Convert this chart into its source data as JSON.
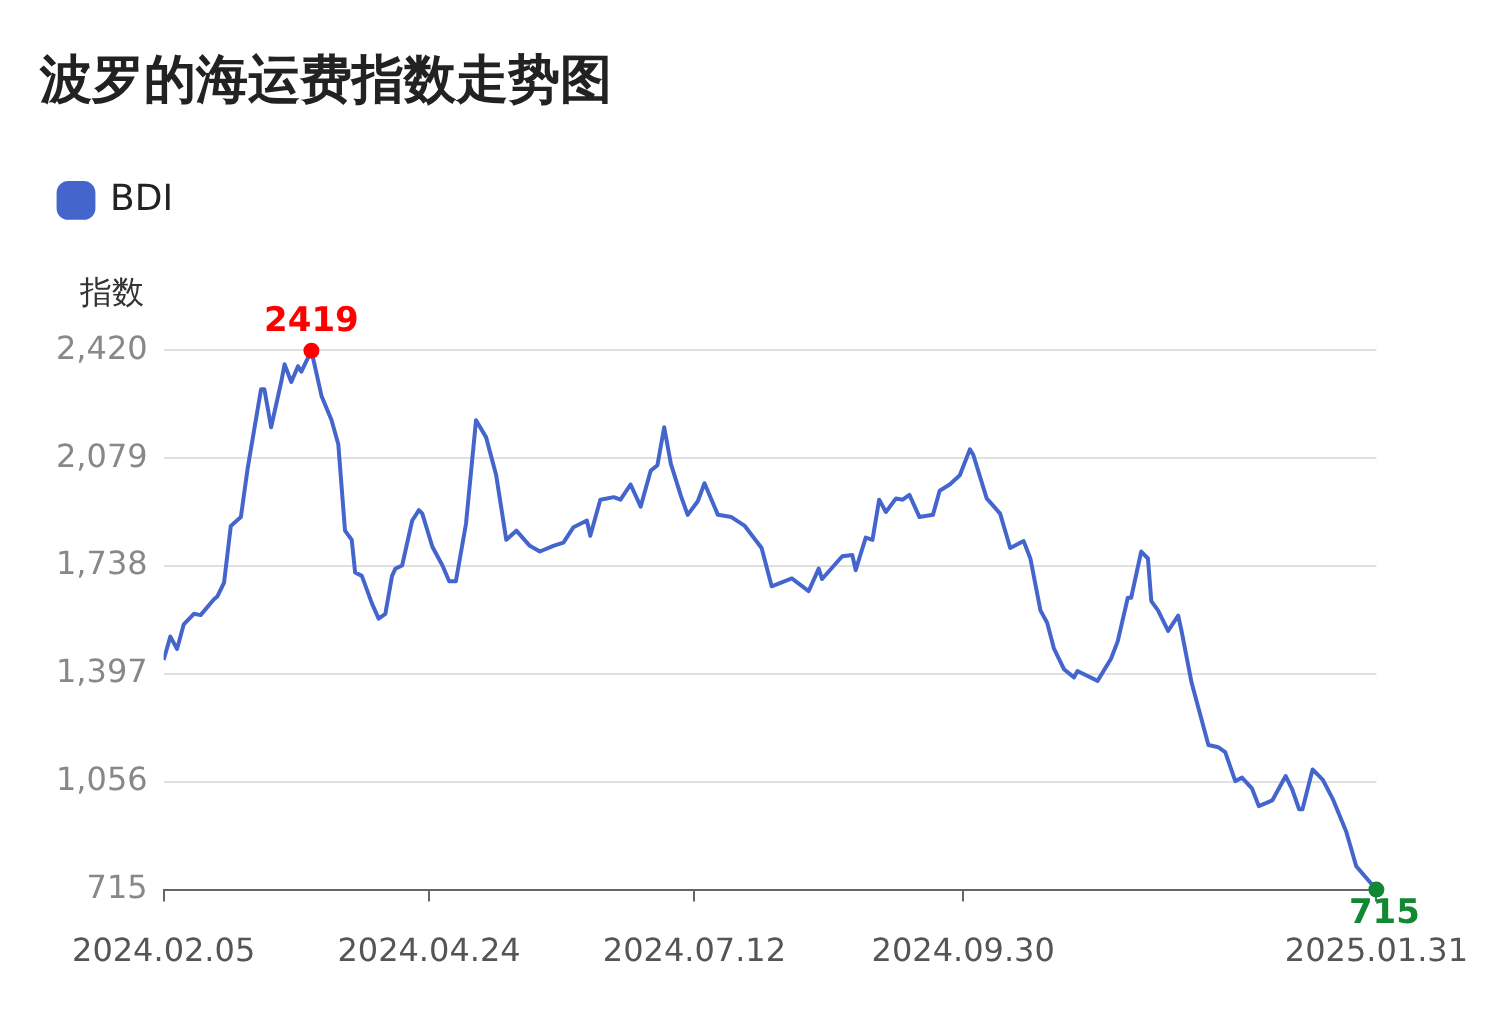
{
  "chart_data": {
    "type": "line",
    "title": "波罗的海运费指数走势图",
    "ylabel": "指数",
    "x": [
      "2024-02-05",
      "2024-02-07",
      "2024-02-09",
      "2024-02-11",
      "2024-02-14",
      "2024-02-16",
      "2024-02-20",
      "2024-02-21",
      "2024-02-23",
      "2024-02-25",
      "2024-02-28",
      "2024-03-01",
      "2024-03-05",
      "2024-03-06",
      "2024-03-08",
      "2024-03-11",
      "2024-03-12",
      "2024-03-14",
      "2024-03-16",
      "2024-03-17",
      "2024-03-20",
      "2024-03-23",
      "2024-03-26",
      "2024-03-28",
      "2024-03-30",
      "2024-04-01",
      "2024-04-02",
      "2024-04-04",
      "2024-04-07",
      "2024-04-09",
      "2024-04-11",
      "2024-04-13",
      "2024-04-14",
      "2024-04-16",
      "2024-04-19",
      "2024-04-21",
      "2024-04-22",
      "2024-04-25",
      "2024-04-28",
      "2024-04-30",
      "2024-05-02",
      "2024-05-05",
      "2024-05-08",
      "2024-05-11",
      "2024-05-14",
      "2024-05-17",
      "2024-05-20",
      "2024-05-24",
      "2024-05-27",
      "2024-05-31",
      "2024-06-03",
      "2024-06-06",
      "2024-06-10",
      "2024-06-11",
      "2024-06-14",
      "2024-06-18",
      "2024-06-20",
      "2024-06-23",
      "2024-06-26",
      "2024-06-29",
      "2024-07-01",
      "2024-07-03",
      "2024-07-05",
      "2024-07-08",
      "2024-07-10",
      "2024-07-13",
      "2024-07-15",
      "2024-07-19",
      "2024-07-23",
      "2024-07-27",
      "2024-08-01",
      "2024-08-04",
      "2024-08-10",
      "2024-08-15",
      "2024-08-18",
      "2024-08-19",
      "2024-08-25",
      "2024-08-28",
      "2024-08-29",
      "2024-09-01",
      "2024-09-03",
      "2024-09-05",
      "2024-09-07",
      "2024-09-10",
      "2024-09-12",
      "2024-09-14",
      "2024-09-17",
      "2024-09-21",
      "2024-09-23",
      "2024-09-26",
      "2024-09-29",
      "2024-10-02",
      "2024-10-03",
      "2024-10-07",
      "2024-10-11",
      "2024-10-14",
      "2024-10-18",
      "2024-10-20",
      "2024-10-23",
      "2024-10-25",
      "2024-10-27",
      "2024-10-30",
      "2024-11-02",
      "2024-11-03",
      "2024-11-09",
      "2024-11-13",
      "2024-11-15",
      "2024-11-18",
      "2024-11-19",
      "2024-11-22",
      "2024-11-24",
      "2024-11-25",
      "2024-11-27",
      "2024-11-30",
      "2024-12-03",
      "2024-12-04",
      "2024-12-07",
      "2024-12-12",
      "2024-12-15",
      "2024-12-17",
      "2024-12-20",
      "2024-12-22",
      "2024-12-25",
      "2024-12-27",
      "2024-12-31",
      "2025-01-04",
      "2025-01-06",
      "2025-01-08",
      "2025-01-09",
      "2025-01-12",
      "2025-01-15",
      "2025-01-18",
      "2025-01-22",
      "2025-01-25",
      "2025-01-31"
    ],
    "series": [
      {
        "name": "BDI",
        "color": "#4466cc",
        "values": [
          1441,
          1515,
          1476,
          1554,
          1587,
          1583,
          1633,
          1642,
          1686,
          1865,
          1893,
          2046,
          2297,
          2297,
          2177,
          2320,
          2376,
          2320,
          2370,
          2353,
          2419,
          2276,
          2199,
          2123,
          1850,
          1821,
          1718,
          1707,
          1620,
          1572,
          1587,
          1707,
          1730,
          1740,
          1882,
          1915,
          1904,
          1799,
          1740,
          1690,
          1690,
          1871,
          2199,
          2145,
          2025,
          1821,
          1850,
          1802,
          1784,
          1802,
          1812,
          1861,
          1882,
          1834,
          1948,
          1956,
          1948,
          1996,
          1926,
          2040,
          2057,
          2177,
          2061,
          1959,
          1900,
          1943,
          2000,
          1900,
          1893,
          1865,
          1795,
          1674,
          1699,
          1659,
          1730,
          1697,
          1769,
          1773,
          1725,
          1828,
          1821,
          1948,
          1909,
          1952,
          1948,
          1963,
          1893,
          1900,
          1976,
          1996,
          2025,
          2107,
          2090,
          1952,
          1904,
          1795,
          1817,
          1762,
          1598,
          1559,
          1478,
          1412,
          1386,
          1406,
          1375,
          1445,
          1500,
          1638,
          1638,
          1784,
          1762,
          1627,
          1598,
          1533,
          1581,
          1533,
          1369,
          1172,
          1165,
          1150,
          1058,
          1069,
          1034,
          979,
          997,
          1074,
          1030,
          969,
          969,
          1095,
          1063,
          1002,
          899,
          789,
          715
        ]
      }
    ],
    "ylim": [
      715,
      2420
    ],
    "yticks": [
      715,
      {
        "value": 1056,
        "label": "1,056"
      },
      {
        "value": 1397,
        "label": "1,397"
      },
      {
        "value": 1738,
        "label": "1,738"
      },
      {
        "value": 2079,
        "label": "2,079"
      },
      {
        "value": 2420,
        "label": "2,420"
      }
    ],
    "xlim": [
      "2024-02-05",
      "2025-01-31"
    ],
    "xticks": [
      {
        "value": "2024-02-05",
        "label": "2024.02.05"
      },
      {
        "value": "2024-04-24",
        "label": "2024.04.24"
      },
      {
        "value": "2024-07-12",
        "label": "2024.07.12"
      },
      {
        "value": "2024-09-30",
        "label": "2024.09.30"
      },
      {
        "value": "2025-01-31",
        "label": "2025.01.31"
      }
    ],
    "annotations": [
      {
        "text": "2419",
        "x": "2024-03-20",
        "y": 2419
      },
      {
        "text": "715",
        "x": "2025-01-31",
        "y": 715
      }
    ],
    "grid": "y",
    "legend": "top left",
    "marker": "none",
    "line_style": "solid"
  }
}
